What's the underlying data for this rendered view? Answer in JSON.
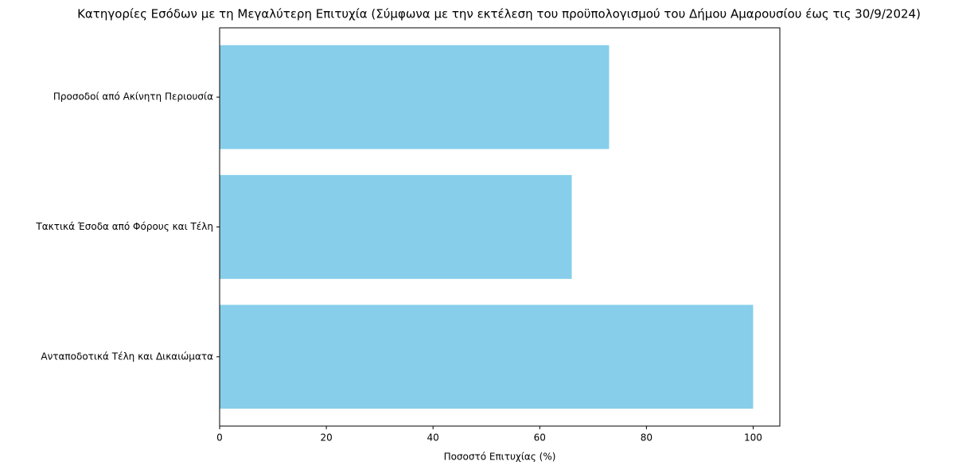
{
  "chart_data": {
    "type": "barh",
    "title": "Κατηγορίες Εσόδων με τη Μεγαλύτερη Επιτυχία (Σύμφωνα με την εκτέλεση του προϋπολογισμού του Δήμου Αμαρουσίου έως τις 30/9/2024)",
    "xlabel": "Ποσοστό Επιτυχίας (%)",
    "categories": [
      "Ανταποδοτικά Τέλη και Δικαιώματα",
      "Τακτικά Έσοδα από Φόρους και Τέλη",
      "Προσοδοί από Ακίνητη Περιουσία"
    ],
    "values": [
      100,
      66,
      73
    ],
    "color": "#87ceeb",
    "xlim": [
      0,
      105
    ],
    "xticks": [
      0,
      20,
      40,
      60,
      80,
      100
    ]
  }
}
